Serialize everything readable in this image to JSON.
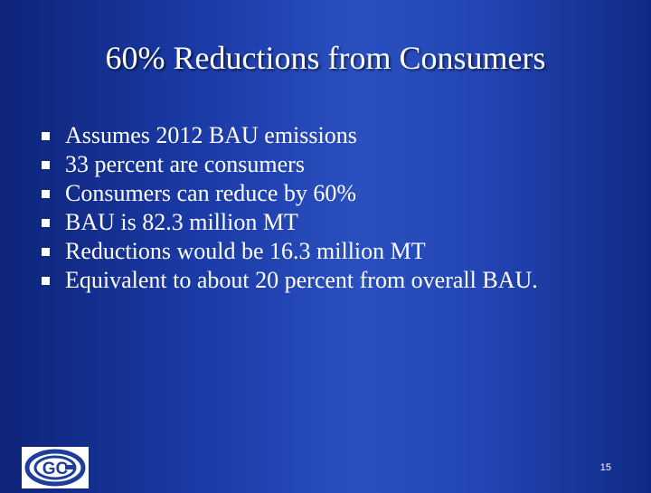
{
  "slide": {
    "title": "60% Reductions from Consumers",
    "bullets": [
      "Assumes 2012 BAU emissions",
      "33 percent are consumers",
      "Consumers can reduce by 60%",
      "BAU is 82.3 million MT",
      "Reductions would be 16.3 million MT",
      "Equivalent to about 20 percent from overall BAU."
    ],
    "page_number": "15",
    "logo": {
      "icon": "gc-logo",
      "text": "GC"
    }
  },
  "colors": {
    "background": "#1a3aa6",
    "text": "#ffffff",
    "logo_blue": "#1f3e9a"
  }
}
